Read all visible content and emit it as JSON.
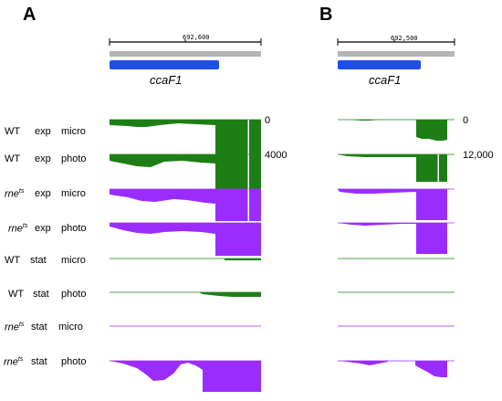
{
  "panels": [
    {
      "letter": "A",
      "coordinate": "692,600",
      "gene": "ccaF1",
      "scale_top": "0",
      "scale_bottom": "4000"
    },
    {
      "letter": "B",
      "coordinate": "692,500",
      "gene": "ccaF1",
      "scale_top": "0",
      "scale_bottom": "12,000"
    }
  ],
  "tracks": [
    {
      "strain": "WT",
      "strain_sup": "",
      "phase": "exp",
      "light": "micro",
      "color": "#1e7e16"
    },
    {
      "strain": "WT",
      "strain_sup": "",
      "phase": "exp",
      "light": "photo",
      "color": "#1e7e16"
    },
    {
      "strain": "rne",
      "strain_sup": "ts",
      "phase": "exp",
      "light": "micro",
      "color": "#9b2cff"
    },
    {
      "strain": "rne",
      "strain_sup": "ts",
      "phase": "exp",
      "light": "photo",
      "color": "#9b2cff"
    },
    {
      "strain": "WT",
      "strain_sup": "",
      "phase": "stat",
      "light": "micro",
      "color": "#1e7e16"
    },
    {
      "strain": "WT",
      "strain_sup": "",
      "phase": "stat",
      "light": "photo",
      "color": "#1e7e16"
    },
    {
      "strain": "rne",
      "strain_sup": "ts",
      "phase": "stat",
      "light": "micro",
      "color": "#9b2cff"
    },
    {
      "strain": "rne",
      "strain_sup": "ts",
      "phase": "stat",
      "light": "photo",
      "color": "#9b2cff"
    }
  ],
  "colors": {
    "gene_bar": "#1f4fe8",
    "annotation_bar": "#b4b4b4",
    "wt": "#1e7e16",
    "rne": "#9b2cff"
  }
}
